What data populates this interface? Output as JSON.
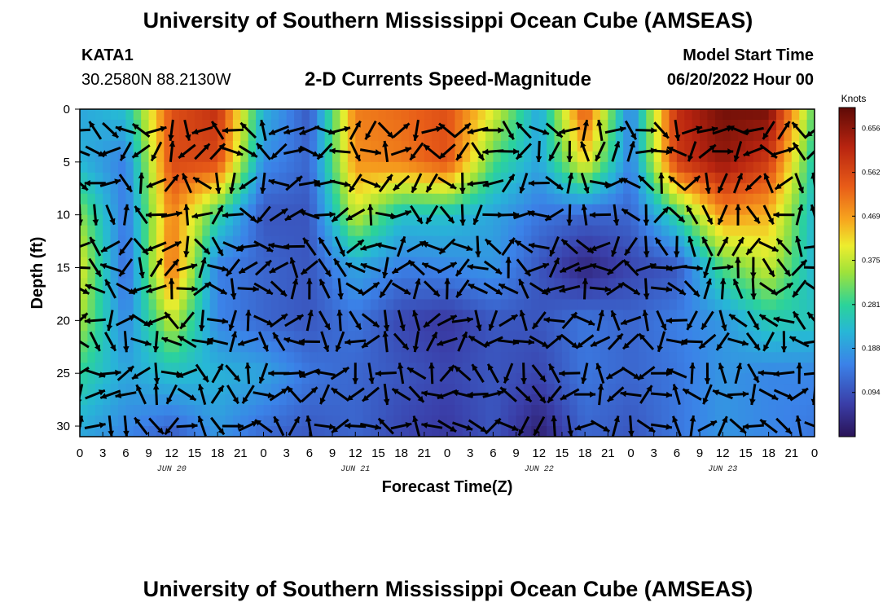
{
  "header": {
    "title": "University of Southern Mississippi Ocean Cube (AMSEAS)",
    "station": "KATA1",
    "coords": "30.2580N  88.2130W",
    "subtitle": "2-D Currents Speed-Magnitude",
    "model_start_label": "Model Start Time",
    "model_start_value": "06/20/2022 Hour 00"
  },
  "footer": {
    "title_repeat": "University of Southern Mississippi Ocean Cube (AMSEAS)"
  },
  "chart_data": {
    "type": "heatmap",
    "title": "2-D Currents Speed-Magnitude",
    "xlabel": "Forecast Time(Z)",
    "ylabel": "Depth (ft)",
    "x_ticks": [
      "0",
      "3",
      "6",
      "9",
      "12",
      "15",
      "18",
      "21",
      "0",
      "3",
      "6",
      "9",
      "12",
      "15",
      "18",
      "21",
      "0",
      "3",
      "6",
      "9",
      "12",
      "15",
      "18",
      "21",
      "0",
      "3",
      "6",
      "9",
      "12",
      "15",
      "18",
      "21",
      "0"
    ],
    "day_labels": [
      {
        "label": "JUN 20",
        "hour": 12
      },
      {
        "label": "JUN 21",
        "hour": 36
      },
      {
        "label": "JUN 22",
        "hour": 60
      },
      {
        "label": "JUN 23",
        "hour": 84
      }
    ],
    "x_range_hours": [
      0,
      96
    ],
    "y_ticks": [
      0,
      5,
      10,
      15,
      20,
      25,
      30
    ],
    "y_range_ft": [
      0,
      31
    ],
    "y_inverted": true,
    "colorbar": {
      "unit": "Knots",
      "ticks": [
        "0.656",
        "0.562",
        "0.469",
        "0.375",
        "0.281",
        "0.188",
        "0.094"
      ],
      "tick_values": [
        0.656,
        0.562,
        0.469,
        0.375,
        0.281,
        0.188,
        0.094
      ],
      "range": [
        0,
        0.7
      ]
    },
    "field_grid": {
      "hours": [
        0,
        6,
        12,
        18,
        24,
        30,
        36,
        42,
        48,
        54,
        60,
        66,
        72,
        78,
        84,
        90,
        96
      ],
      "depths_ft": [
        0,
        5,
        10,
        15,
        20,
        25,
        31
      ],
      "speed_knots": [
        [
          0.2,
          0.24,
          0.55,
          0.6,
          0.22,
          0.1,
          0.5,
          0.52,
          0.55,
          0.4,
          0.2,
          0.55,
          0.15,
          0.6,
          0.68,
          0.68,
          0.3
        ],
        [
          0.22,
          0.15,
          0.56,
          0.56,
          0.17,
          0.12,
          0.48,
          0.5,
          0.55,
          0.3,
          0.2,
          0.42,
          0.15,
          0.58,
          0.65,
          0.58,
          0.25
        ],
        [
          0.34,
          0.14,
          0.5,
          0.28,
          0.1,
          0.1,
          0.38,
          0.24,
          0.24,
          0.2,
          0.14,
          0.12,
          0.12,
          0.28,
          0.48,
          0.45,
          0.22
        ],
        [
          0.4,
          0.12,
          0.52,
          0.15,
          0.12,
          0.1,
          0.2,
          0.15,
          0.16,
          0.18,
          0.1,
          0.03,
          0.08,
          0.1,
          0.3,
          0.38,
          0.22
        ],
        [
          0.36,
          0.16,
          0.38,
          0.16,
          0.12,
          0.1,
          0.14,
          0.08,
          0.06,
          0.1,
          0.1,
          0.14,
          0.12,
          0.15,
          0.18,
          0.26,
          0.25
        ],
        [
          0.28,
          0.2,
          0.24,
          0.22,
          0.2,
          0.14,
          0.12,
          0.1,
          0.08,
          0.1,
          0.08,
          0.14,
          0.12,
          0.14,
          0.18,
          0.16,
          0.16
        ],
        [
          0.2,
          0.16,
          0.1,
          0.18,
          0.12,
          0.1,
          0.12,
          0.08,
          0.06,
          0.1,
          0.02,
          0.12,
          0.1,
          0.14,
          0.18,
          0.16,
          0.14
        ]
      ]
    },
    "vectors": {
      "hour_step": 2,
      "depths_ft": [
        2,
        4,
        7,
        10,
        13,
        15,
        17,
        20,
        22,
        25,
        27,
        30
      ],
      "note": "current direction arrows overlaid on speed field"
    }
  }
}
